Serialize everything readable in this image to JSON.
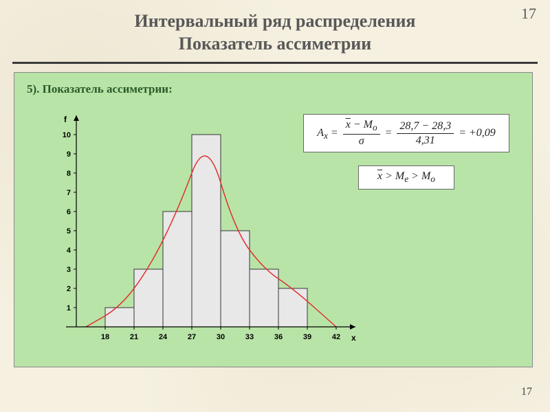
{
  "slide": {
    "corner_number": "17",
    "title_line1": "Интервальный ряд распределения",
    "title_line2": "Показатель ассиметрии",
    "page_number": "17"
  },
  "panel": {
    "caption": "5).  Показатель ассиметрии:",
    "background_color": "#b8e4a7"
  },
  "formula1": {
    "lhs": "Aₓ =",
    "frac1_num": "x − Mₒ",
    "frac1_den": "σ",
    "eq": "=",
    "frac2_num": "28,7 − 28,3",
    "frac2_den": "4,31",
    "result": "= +0,09"
  },
  "formula2": {
    "text": "x > Mₑ > Mₒ"
  },
  "chart": {
    "type": "histogram",
    "y_label": "f",
    "x_label": "x",
    "x_ticks": [
      18,
      21,
      24,
      27,
      30,
      33,
      36,
      39,
      42
    ],
    "y_ticks": [
      1,
      2,
      3,
      4,
      5,
      6,
      7,
      8,
      9,
      10
    ],
    "bars": [
      {
        "x_start": 18,
        "x_end": 21,
        "f": 1
      },
      {
        "x_start": 21,
        "x_end": 24,
        "f": 3
      },
      {
        "x_start": 24,
        "x_end": 27,
        "f": 6
      },
      {
        "x_start": 27,
        "x_end": 30,
        "f": 10
      },
      {
        "x_start": 30,
        "x_end": 33,
        "f": 5
      },
      {
        "x_start": 33,
        "x_end": 36,
        "f": 3
      },
      {
        "x_start": 36,
        "x_end": 39,
        "f": 2
      }
    ],
    "curve_points": [
      {
        "x": 16,
        "y": 0
      },
      {
        "x": 19.5,
        "y": 1
      },
      {
        "x": 22.5,
        "y": 3
      },
      {
        "x": 25.5,
        "y": 6
      },
      {
        "x": 28.5,
        "y": 10
      },
      {
        "x": 31.5,
        "y": 5
      },
      {
        "x": 34.5,
        "y": 3
      },
      {
        "x": 37.5,
        "y": 2
      },
      {
        "x": 42,
        "y": 0
      }
    ],
    "bar_fill": "#e8e8e8",
    "bar_stroke": "#333333",
    "curve_color": "#e03030",
    "axis_color": "#000000",
    "tick_font_size": 11,
    "label_font_size": 12,
    "plot": {
      "x_origin": 70,
      "y_origin": 320,
      "x_min": 15,
      "x_max": 44,
      "x_scale": 14,
      "y_scale": 28,
      "y_max": 11
    }
  }
}
